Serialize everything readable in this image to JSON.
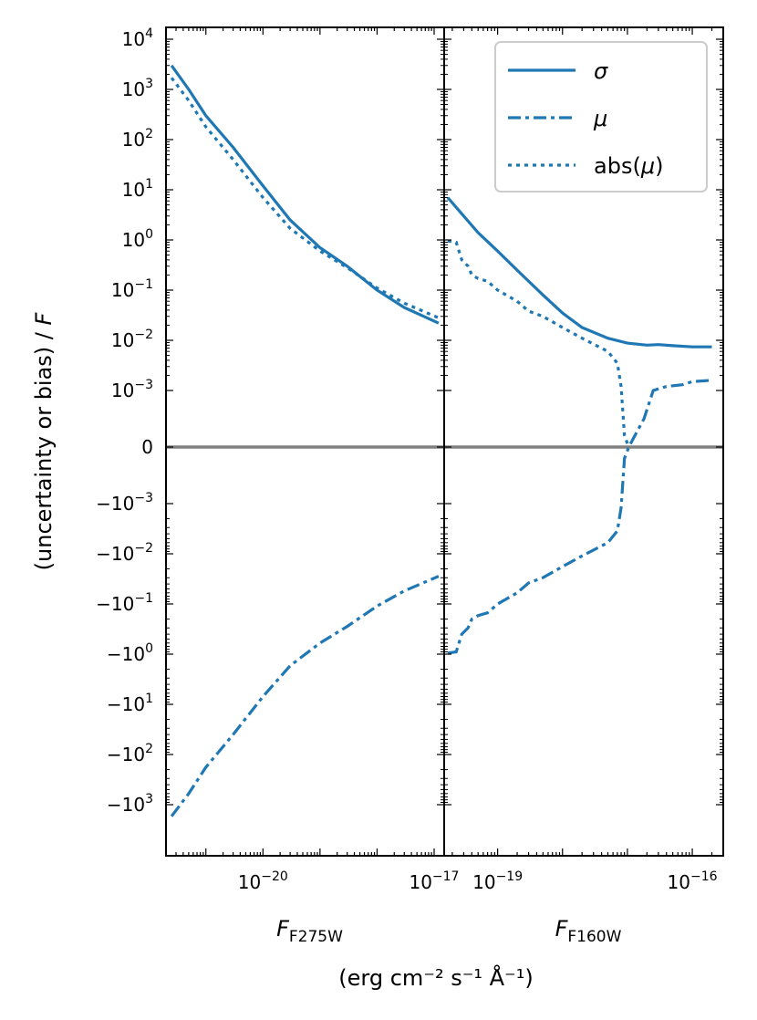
{
  "chart_data": {
    "type": "line",
    "y_scale": "symlog",
    "y_linthresh": 0.001,
    "y_ticks": [
      {
        "value": 10000,
        "label": "10",
        "exp": "4"
      },
      {
        "value": 1000,
        "label": "10",
        "exp": "3"
      },
      {
        "value": 100,
        "label": "10",
        "exp": "2"
      },
      {
        "value": 10,
        "label": "10",
        "exp": "1"
      },
      {
        "value": 1,
        "label": "10",
        "exp": "0"
      },
      {
        "value": 0.1,
        "label": "10",
        "exp": "−1"
      },
      {
        "value": 0.01,
        "label": "10",
        "exp": "−2"
      },
      {
        "value": 0.001,
        "label": "10",
        "exp": "−3"
      },
      {
        "value": 0,
        "label": "0",
        "exp": ""
      },
      {
        "value": -0.001,
        "label": "−10",
        "exp": "−3"
      },
      {
        "value": -0.01,
        "label": "−10",
        "exp": "−2"
      },
      {
        "value": -0.1,
        "label": "−10",
        "exp": "−1"
      },
      {
        "value": -1,
        "label": "−10",
        "exp": "0"
      },
      {
        "value": -10,
        "label": "−10",
        "exp": "1"
      },
      {
        "value": -100,
        "label": "−10",
        "exp": "2"
      },
      {
        "value": -1000,
        "label": "−10",
        "exp": "3"
      }
    ],
    "ylabel_main": "(uncertainty or bias) / ",
    "ylabel_var": "F",
    "units_label": "(erg cm⁻² s⁻¹ Å⁻¹)",
    "zero_line_color": "#808080",
    "series_color": "#1f77b4",
    "legend": {
      "placement": "top-right of right panel",
      "entries": [
        {
          "key": "sigma",
          "label": "σ",
          "style": "solid"
        },
        {
          "key": "mu",
          "label": "μ",
          "style": "dashdot"
        },
        {
          "key": "absmu",
          "label": "abs(μ)",
          "style": "dotted"
        }
      ]
    },
    "panels": [
      {
        "id": "F275W",
        "x_scale": "log",
        "xlim": [
          2e-22,
          1.5e-17
        ],
        "x_ticks": [
          {
            "value": 1e-20,
            "label": "10",
            "exp": "−20"
          },
          {
            "value": 1e-17,
            "label": "10",
            "exp": "−17"
          }
        ],
        "xlabel_var": "F",
        "xlabel_sub": "F275W",
        "series": [
          {
            "key": "sigma",
            "points": [
              [
                2.5e-22,
                3000
              ],
              [
                5e-22,
                1000
              ],
              [
                1e-21,
                300
              ],
              [
                3e-21,
                70
              ],
              [
                1e-20,
                12
              ],
              [
                3e-20,
                2.5
              ],
              [
                1e-19,
                0.7
              ],
              [
                3e-19,
                0.3
              ],
              [
                1e-18,
                0.1
              ],
              [
                3e-18,
                0.045
              ],
              [
                1.2e-17,
                0.022
              ]
            ]
          },
          {
            "key": "absmu",
            "points": [
              [
                2.5e-22,
                1700
              ],
              [
                5e-22,
                600
              ],
              [
                1e-21,
                180
              ],
              [
                3e-21,
                40
              ],
              [
                1e-20,
                7
              ],
              [
                3e-20,
                1.7
              ],
              [
                1e-19,
                0.6
              ],
              [
                3e-19,
                0.28
              ],
              [
                1e-18,
                0.11
              ],
              [
                3e-18,
                0.055
              ],
              [
                1.2e-17,
                0.028
              ]
            ]
          },
          {
            "key": "mu",
            "points": [
              [
                2.5e-22,
                -1700
              ],
              [
                5e-22,
                -600
              ],
              [
                1e-21,
                -180
              ],
              [
                3e-21,
                -40
              ],
              [
                1e-20,
                -7
              ],
              [
                3e-20,
                -1.7
              ],
              [
                1e-19,
                -0.6
              ],
              [
                3e-19,
                -0.28
              ],
              [
                1e-18,
                -0.11
              ],
              [
                3e-18,
                -0.055
              ],
              [
                1.2e-17,
                -0.028
              ]
            ]
          }
        ]
      },
      {
        "id": "F160W",
        "x_scale": "log",
        "xlim": [
          1.5e-20,
          3e-16
        ],
        "x_ticks": [
          {
            "value": 1e-19,
            "label": "10",
            "exp": "−19"
          },
          {
            "value": 1e-16,
            "label": "10",
            "exp": "−16"
          }
        ],
        "xlabel_var": "F",
        "xlabel_sub": "F160W",
        "series": [
          {
            "key": "sigma",
            "points": [
              [
                1.7e-20,
                7
              ],
              [
                3e-20,
                3
              ],
              [
                5e-20,
                1.4
              ],
              [
                1e-19,
                0.6
              ],
              [
                2e-19,
                0.25
              ],
              [
                5e-19,
                0.08
              ],
              [
                1e-18,
                0.035
              ],
              [
                2e-18,
                0.018
              ],
              [
                5e-18,
                0.011
              ],
              [
                1e-17,
                0.0088
              ],
              [
                2e-17,
                0.008
              ],
              [
                3e-17,
                0.0082
              ],
              [
                5e-17,
                0.0078
              ],
              [
                1e-16,
                0.0074
              ],
              [
                2e-16,
                0.0074
              ]
            ]
          },
          {
            "key": "absmu",
            "points": [
              [
                1.7e-20,
                0.95
              ],
              [
                2.3e-20,
                0.9
              ],
              [
                2.8e-20,
                0.4
              ],
              [
                3.5e-20,
                0.3
              ],
              [
                4e-20,
                0.2
              ],
              [
                5e-20,
                0.17
              ],
              [
                7e-20,
                0.15
              ],
              [
                1e-19,
                0.1
              ],
              [
                2e-19,
                0.06
              ],
              [
                3e-19,
                0.038
              ],
              [
                5e-19,
                0.03
              ],
              [
                1e-18,
                0.018
              ],
              [
                2e-18,
                0.011
              ],
              [
                5e-18,
                0.006
              ],
              [
                7e-18,
                0.0035
              ],
              [
                8e-18,
                0.0012
              ],
              [
                9e-18,
                0.0002
              ],
              [
                1.05e-17,
                0
              ]
            ]
          },
          {
            "key": "mu",
            "points": [
              [
                1.7e-20,
                -0.95
              ],
              [
                2.3e-20,
                -0.9
              ],
              [
                2.8e-20,
                -0.4
              ],
              [
                3.5e-20,
                -0.3
              ],
              [
                4e-20,
                -0.2
              ],
              [
                5e-20,
                -0.17
              ],
              [
                7e-20,
                -0.15
              ],
              [
                1e-19,
                -0.1
              ],
              [
                2e-19,
                -0.06
              ],
              [
                3e-19,
                -0.038
              ],
              [
                5e-19,
                -0.03
              ],
              [
                1e-18,
                -0.018
              ],
              [
                2e-18,
                -0.011
              ],
              [
                5e-18,
                -0.006
              ],
              [
                7e-18,
                -0.0035
              ],
              [
                8e-18,
                -0.0012
              ],
              [
                9e-18,
                -0.0002
              ],
              [
                1.05e-17,
                0
              ],
              [
                1.3e-17,
                0.0002
              ],
              [
                1.8e-17,
                0.0005
              ],
              [
                2.5e-17,
                0.001
              ],
              [
                4e-17,
                0.0012
              ],
              [
                7e-17,
                0.0013
              ],
              [
                1e-16,
                0.0015
              ],
              [
                2e-16,
                0.0016
              ]
            ]
          }
        ]
      }
    ]
  }
}
